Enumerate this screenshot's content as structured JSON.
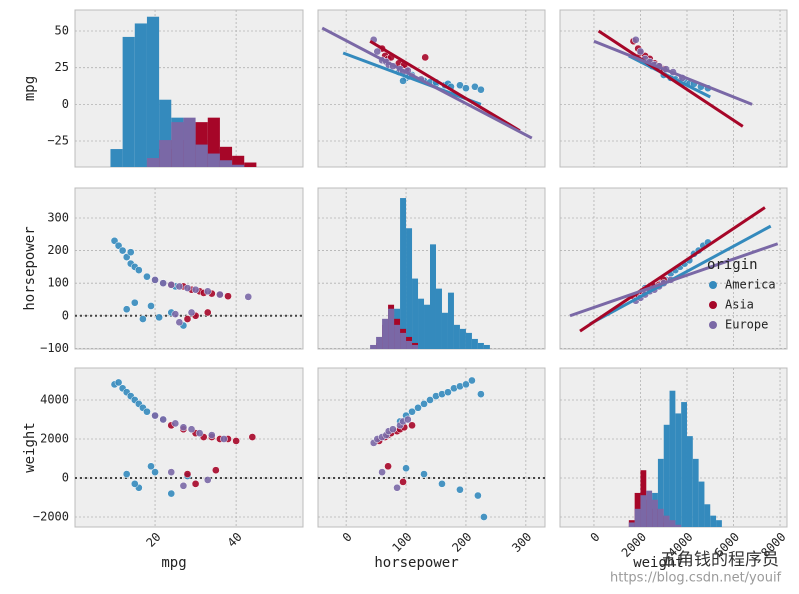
{
  "chart_data": [
    {
      "type": "histogram",
      "ylabel": "mpg",
      "xlim": [
        0.25,
        56.5
      ],
      "ylim": [
        -42.7,
        64.3
      ],
      "count_lim": [
        0,
        70
      ],
      "yticks": [
        50,
        25,
        0,
        {
          "value": -25,
          "label": "−25"
        }
      ],
      "bins": [
        9,
        12,
        15,
        18,
        21,
        24,
        27,
        30,
        33,
        36,
        39,
        42,
        45,
        48
      ],
      "series": [
        {
          "color": "#348ABD",
          "counts": [
            8,
            58,
            64,
            67,
            30,
            22,
            20,
            12,
            8,
            4,
            1,
            0,
            0
          ]
        },
        {
          "color": "#A60628",
          "counts": [
            0,
            0,
            0,
            3,
            8,
            12,
            18,
            20,
            22,
            9,
            5,
            2,
            0
          ]
        },
        {
          "color": "#7A68A6",
          "counts": [
            0,
            0,
            0,
            4,
            12,
            20,
            22,
            10,
            6,
            3,
            1,
            0,
            0
          ]
        }
      ]
    },
    {
      "type": "scatter",
      "xlim": [
        -47,
        332
      ],
      "ylim": [
        -42.7,
        64.3
      ],
      "series": [
        {
          "color": "#348ABD",
          "x": [
            100,
            110,
            130,
            140,
            150,
            150,
            165,
            170,
            175,
            190,
            200,
            215,
            225,
            88,
            105,
            95
          ],
          "y": [
            18,
            20,
            16,
            15,
            14,
            15,
            13,
            14,
            12,
            13,
            11,
            12,
            10,
            22,
            19,
            16
          ],
          "line_x": [
            -5,
            225
          ],
          "line_y": [
            35,
            0
          ]
        },
        {
          "color": "#A60628",
          "x": [
            60,
            65,
            70,
            75,
            88,
            95,
            100,
            97,
            132
          ],
          "y": [
            38,
            33,
            31,
            32,
            28,
            25,
            24,
            27,
            32
          ],
          "line_x": [
            40,
            290
          ],
          "line_y": [
            43,
            -18
          ]
        },
        {
          "color": "#7A68A6",
          "x": [
            46,
            52,
            60,
            67,
            71,
            78,
            90,
            95,
            103,
            110,
            125
          ],
          "y": [
            44,
            36,
            30,
            29,
            27,
            26,
            24,
            22,
            23,
            19,
            17
          ],
          "line_x": [
            -40,
            310
          ],
          "line_y": [
            52,
            -23
          ]
        }
      ]
    },
    {
      "type": "scatter",
      "xlim": [
        -1460,
        8300
      ],
      "ylim": [
        -42.7,
        64.3
      ],
      "series": [
        {
          "color": "#348ABD",
          "x": [
            2500,
            2800,
            3000,
            3300,
            3500,
            3700,
            3900,
            4100,
            4300,
            4600,
            4900
          ],
          "y": [
            26,
            24,
            20,
            18,
            17,
            16,
            15,
            14,
            14,
            12,
            11
          ],
          "line_x": [
            1500,
            5000
          ],
          "line_y": [
            33,
            5
          ]
        },
        {
          "color": "#A60628",
          "x": [
            1700,
            1900,
            2000,
            2200,
            2400,
            2600,
            2800,
            3000
          ],
          "y": [
            43,
            38,
            35,
            33,
            31,
            28,
            26,
            24
          ],
          "line_x": [
            200,
            6400
          ],
          "line_y": [
            50,
            -15
          ]
        },
        {
          "color": "#7A68A6",
          "x": [
            1800,
            2000,
            2200,
            2400,
            2600,
            2800,
            3100,
            3400,
            3800
          ],
          "y": [
            44,
            36,
            31,
            29,
            27,
            26,
            24,
            22,
            18
          ],
          "line_x": [
            0,
            6800
          ],
          "line_y": [
            43,
            0
          ]
        }
      ]
    },
    {
      "type": "scatter",
      "ylabel": "horsepower",
      "xlim": [
        0.25,
        56.5
      ],
      "ylim": [
        -102,
        392
      ],
      "refline": 0,
      "yticks": [
        300,
        200,
        100,
        0,
        {
          "value": -100,
          "label": "−100"
        }
      ],
      "series": [
        {
          "color": "#348ABD",
          "x": [
            10,
            11,
            12,
            13,
            14,
            14,
            15,
            16,
            18,
            20,
            22,
            25,
            13,
            15,
            17,
            19,
            21,
            24,
            27
          ],
          "y": [
            230,
            215,
            200,
            180,
            195,
            160,
            150,
            140,
            120,
            110,
            100,
            90,
            20,
            40,
            -10,
            30,
            -5,
            10,
            -30
          ]
        },
        {
          "color": "#A60628",
          "x": [
            24,
            27,
            29,
            31,
            32,
            34,
            36,
            38,
            28,
            33,
            30
          ],
          "y": [
            95,
            90,
            80,
            75,
            70,
            68,
            65,
            60,
            -10,
            10,
            0
          ]
        },
        {
          "color": "#7A68A6",
          "x": [
            20,
            22,
            24,
            26,
            28,
            30,
            33,
            36,
            43,
            26,
            25,
            29
          ],
          "y": [
            110,
            100,
            95,
            90,
            85,
            80,
            75,
            65,
            58,
            -20,
            5,
            10
          ]
        }
      ]
    },
    {
      "type": "histogram",
      "xlim": [
        -47,
        332
      ],
      "ylim": [
        -102,
        392
      ],
      "count_lim": [
        0,
        80
      ],
      "bins": [
        40,
        50,
        60,
        70,
        80,
        90,
        100,
        110,
        120,
        130,
        140,
        150,
        160,
        170,
        180,
        190,
        200,
        210,
        220,
        230,
        240
      ],
      "series": [
        {
          "color": "#348ABD",
          "counts": [
            0,
            0,
            0,
            2,
            20,
            75,
            60,
            35,
            25,
            22,
            52,
            30,
            18,
            28,
            12,
            10,
            8,
            5,
            3,
            2
          ]
        },
        {
          "color": "#A60628",
          "counts": [
            0,
            3,
            12,
            22,
            15,
            10,
            6,
            3,
            0,
            0,
            0,
            0,
            0,
            0,
            0,
            0,
            0,
            0,
            0,
            0
          ]
        },
        {
          "color": "#7A68A6",
          "counts": [
            2,
            6,
            15,
            20,
            12,
            8,
            4,
            2,
            0,
            0,
            0,
            0,
            0,
            0,
            0,
            0,
            0,
            0,
            0,
            0
          ]
        }
      ]
    },
    {
      "type": "scatter",
      "xlim": [
        -1460,
        8300
      ],
      "ylim": [
        -102,
        392
      ],
      "legend": "right",
      "legend_title": "origin",
      "series": [
        {
          "name": "America",
          "color": "#348ABD",
          "x": [
            2200,
            2600,
            2900,
            3100,
            3300,
            3500,
            3700,
            3900,
            4100,
            4300,
            4500,
            4700,
            4900
          ],
          "y": [
            85,
            90,
            100,
            110,
            130,
            140,
            150,
            160,
            170,
            190,
            200,
            215,
            225
          ],
          "line_x": [
            -170,
            7600
          ],
          "line_y": [
            -25,
            275
          ]
        },
        {
          "name": "Asia",
          "color": "#A60628",
          "x": [
            1700,
            1900,
            2100,
            2200,
            2400,
            2600,
            2800,
            3000
          ],
          "y": [
            60,
            65,
            70,
            80,
            85,
            90,
            95,
            110
          ],
          "line_x": [
            -600,
            7350
          ],
          "line_y": [
            -47,
            332
          ]
        },
        {
          "name": "Europe",
          "color": "#7A68A6",
          "x": [
            1800,
            2000,
            2200,
            2400,
            2600,
            2800,
            3000,
            3300
          ],
          "y": [
            46,
            55,
            65,
            75,
            80,
            90,
            100,
            110
          ],
          "line_x": [
            -1030,
            7900
          ],
          "line_y": [
            0,
            221
          ]
        }
      ]
    },
    {
      "type": "scatter",
      "ylabel": "weight",
      "xlabel": "mpg",
      "xlim": [
        0.25,
        56.5
      ],
      "ylim": [
        -2513,
        5641
      ],
      "refline": 0,
      "xticks": [
        20,
        40
      ],
      "yticks": [
        4000,
        2000,
        0,
        {
          "value": -2000,
          "label": "−2000"
        }
      ],
      "series": [
        {
          "color": "#348ABD",
          "x": [
            10,
            11,
            12,
            13,
            14,
            15,
            16,
            17,
            18,
            20,
            22,
            13,
            16,
            20,
            24,
            28,
            15,
            19
          ],
          "y": [
            4800,
            4900,
            4600,
            4400,
            4200,
            4000,
            3800,
            3600,
            3400,
            3200,
            3000,
            200,
            -500,
            300,
            -800,
            100,
            -300,
            600
          ]
        },
        {
          "color": "#A60628",
          "x": [
            24,
            27,
            30,
            32,
            34,
            36,
            38,
            40,
            44,
            30,
            35,
            28
          ],
          "y": [
            2700,
            2500,
            2300,
            2100,
            2100,
            2000,
            2000,
            1900,
            2100,
            -300,
            400,
            200
          ]
        },
        {
          "color": "#7A68A6",
          "x": [
            20,
            22,
            25,
            27,
            29,
            31,
            34,
            37,
            27,
            24,
            33
          ],
          "y": [
            3200,
            3000,
            2800,
            2600,
            2500,
            2300,
            2200,
            2000,
            -400,
            300,
            -100
          ]
        }
      ]
    },
    {
      "type": "scatter",
      "xlabel": "horsepower",
      "xlim": [
        -47,
        332
      ],
      "ylim": [
        -2513,
        5641
      ],
      "refline": 0,
      "xticks": [
        0,
        100,
        200,
        300
      ],
      "series": [
        {
          "color": "#348ABD",
          "x": [
            90,
            100,
            110,
            120,
            130,
            140,
            150,
            160,
            170,
            180,
            190,
            200,
            210,
            225,
            100,
            130,
            160,
            190,
            220,
            230
          ],
          "y": [
            2900,
            3200,
            3400,
            3600,
            3800,
            4000,
            4200,
            4300,
            4400,
            4600,
            4700,
            4800,
            5000,
            4300,
            500,
            200,
            -300,
            -600,
            -900,
            -2000
          ]
        },
        {
          "color": "#A60628",
          "x": [
            55,
            65,
            70,
            75,
            85,
            90,
            97,
            110,
            70,
            95
          ],
          "y": [
            1900,
            2100,
            2200,
            2300,
            2400,
            2500,
            2600,
            2700,
            600,
            -200
          ]
        },
        {
          "color": "#7A68A6",
          "x": [
            46,
            52,
            60,
            67,
            71,
            78,
            90,
            95,
            103,
            60,
            85
          ],
          "y": [
            1800,
            2000,
            2100,
            2200,
            2400,
            2500,
            2700,
            2900,
            3000,
            300,
            -500
          ]
        }
      ]
    },
    {
      "type": "histogram",
      "xlabel": "weight",
      "xlim": [
        -1460,
        8300
      ],
      "ylim": [
        -2513,
        5641
      ],
      "count_lim": [
        0,
        70
      ],
      "xticks": [
        0,
        2000,
        4000,
        6000,
        8000
      ],
      "bins": [
        1500,
        1750,
        2000,
        2250,
        2500,
        2750,
        3000,
        3250,
        3500,
        3750,
        4000,
        4250,
        4500,
        4750,
        5000,
        5250,
        5500
      ],
      "series": [
        {
          "color": "#348ABD",
          "counts": [
            0,
            0,
            0,
            5,
            15,
            30,
            45,
            60,
            50,
            55,
            40,
            30,
            20,
            10,
            5,
            3
          ]
        },
        {
          "color": "#A60628",
          "counts": [
            3,
            15,
            25,
            12,
            8,
            5,
            2,
            0,
            0,
            0,
            0,
            0,
            0,
            0,
            0,
            0
          ]
        },
        {
          "color": "#7A68A6",
          "counts": [
            2,
            8,
            14,
            16,
            12,
            8,
            5,
            3,
            1,
            0,
            0,
            0,
            0,
            0,
            0,
            0
          ]
        }
      ]
    }
  ],
  "watermark": {
    "name": "五角钱的程序员",
    "url": "https://blog.csdn.net/youif"
  }
}
